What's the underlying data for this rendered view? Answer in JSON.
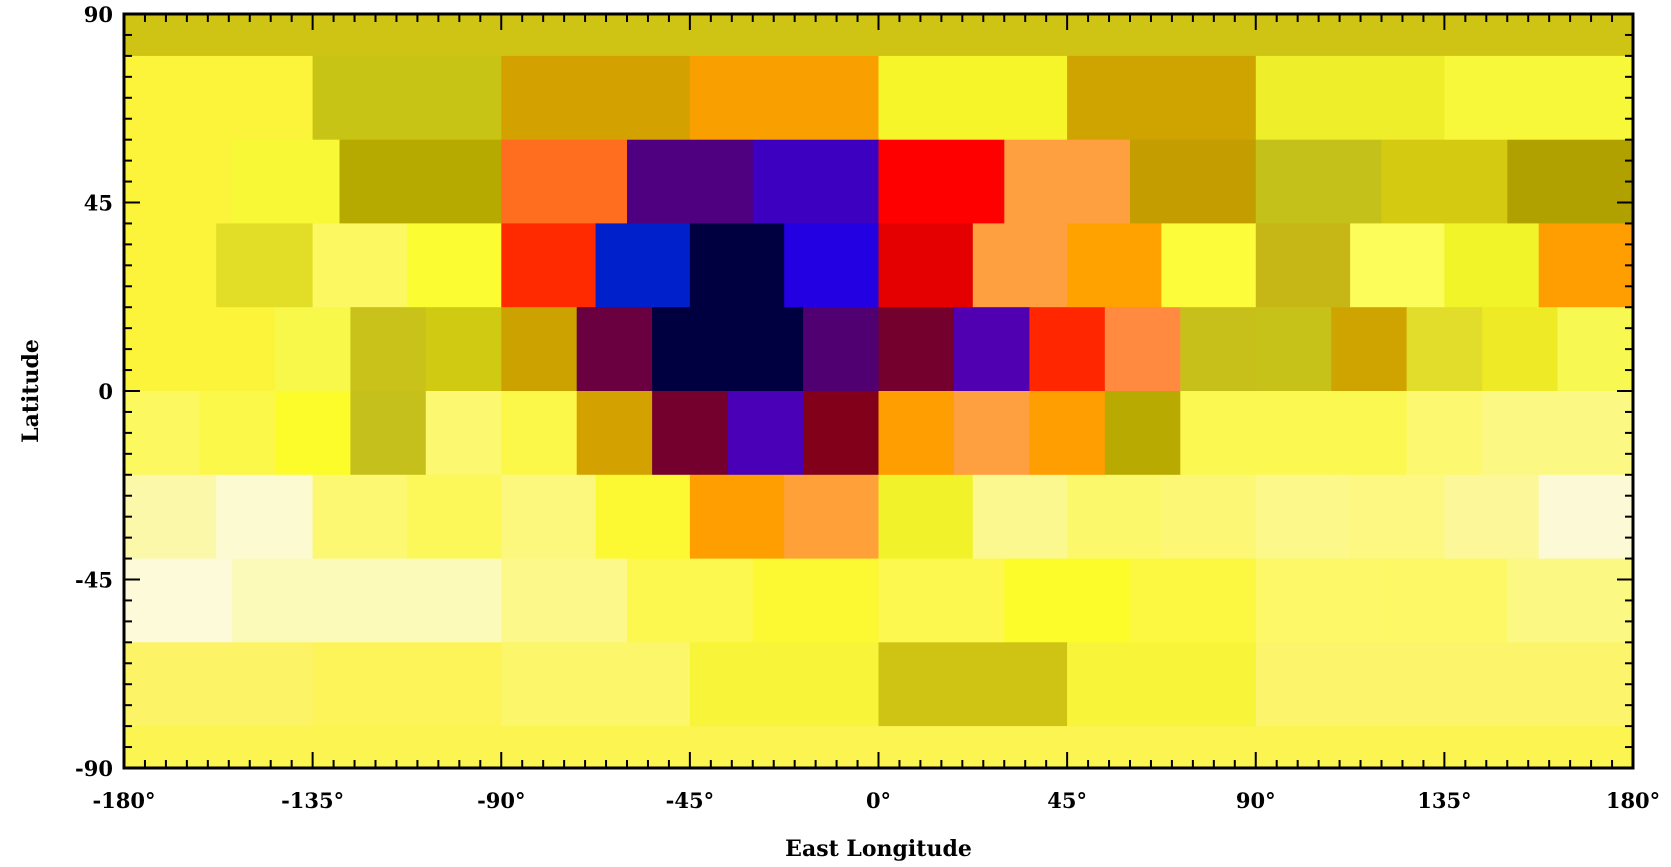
{
  "chart_data": {
    "type": "heatmap",
    "xlabel": "East Longitude",
    "ylabel": "Latitude",
    "xlim": [
      -180,
      180
    ],
    "ylim": [
      -90,
      90
    ],
    "x_ticks": [
      {
        "value": -180,
        "label": "-180°"
      },
      {
        "value": -135,
        "label": "-135°"
      },
      {
        "value": -90,
        "label": "-90°"
      },
      {
        "value": -45,
        "label": "-45°"
      },
      {
        "value": 0,
        "label": "0°"
      },
      {
        "value": 45,
        "label": "45°"
      },
      {
        "value": 90,
        "label": "90°"
      },
      {
        "value": 135,
        "label": "135°"
      },
      {
        "value": 180,
        "label": "180°"
      }
    ],
    "y_ticks": [
      {
        "value": 90,
        "label": "90"
      },
      {
        "value": 45,
        "label": "45"
      },
      {
        "value": 0,
        "label": "0"
      },
      {
        "value": -45,
        "label": "-45"
      },
      {
        "value": -90,
        "label": "-90"
      }
    ],
    "bands": [
      {
        "lat": [
          70,
          90
        ],
        "cells": [
          {
            "lon": [
              -180,
              180
            ],
            "color": "#cfc414"
          }
        ]
      },
      {
        "lat": [
          60,
          80
        ],
        "cells": [
          {
            "lon": [
              -180,
              -135
            ],
            "color": "#fbf43a"
          },
          {
            "lon": [
              -135,
              -90
            ],
            "color": "#c8c416"
          },
          {
            "lon": [
              -90,
              -45
            ],
            "color": "#d4a200"
          },
          {
            "lon": [
              -45,
              0
            ],
            "color": "#f9a000"
          },
          {
            "lon": [
              0,
              45
            ],
            "color": "#f5f52a"
          },
          {
            "lon": [
              45,
              90
            ],
            "color": "#d0a400"
          },
          {
            "lon": [
              90,
              135
            ],
            "color": "#eeee2a"
          },
          {
            "lon": [
              135,
              180
            ],
            "color": "#f8f83a"
          }
        ]
      },
      {
        "lat": [
          40,
          60
        ],
        "cells": [
          {
            "lon": [
              -180,
              -154.3
            ],
            "color": "#fbf43a"
          },
          {
            "lon": [
              -154.3,
              -128.6
            ],
            "color": "#f8f836"
          },
          {
            "lon": [
              -128.6,
              -90
            ],
            "color": "#b6aa00"
          },
          {
            "lon": [
              -90,
              -60
            ],
            "color": "#ff6e1e"
          },
          {
            "lon": [
              -60,
              -30
            ],
            "color": "#4e0080"
          },
          {
            "lon": [
              -30,
              0
            ],
            "color": "#3e00c0"
          },
          {
            "lon": [
              0,
              30
            ],
            "color": "#fe0000"
          },
          {
            "lon": [
              30,
              60
            ],
            "color": "#ffa040"
          },
          {
            "lon": [
              60,
              90
            ],
            "color": "#c49e00"
          },
          {
            "lon": [
              90,
              120
            ],
            "color": "#c4c21a"
          },
          {
            "lon": [
              120,
              150
            ],
            "color": "#d4ca12"
          },
          {
            "lon": [
              150,
              180
            ],
            "color": "#b0a100"
          }
        ]
      },
      {
        "lat": [
          20,
          40
        ],
        "cells": [
          {
            "lon": [
              -180,
              -158
            ],
            "color": "#fbf43a"
          },
          {
            "lon": [
              -158,
              -135
            ],
            "color": "#e2de28"
          },
          {
            "lon": [
              -135,
              -112.5
            ],
            "color": "#fcf862"
          },
          {
            "lon": [
              -112.5,
              -90
            ],
            "color": "#fcfc32"
          },
          {
            "lon": [
              -90,
              -67.5
            ],
            "color": "#ff2a00"
          },
          {
            "lon": [
              -67.5,
              -45
            ],
            "color": "#0020cc"
          },
          {
            "lon": [
              -45,
              -22.5
            ],
            "color": "#000040"
          },
          {
            "lon": [
              -22.5,
              0
            ],
            "color": "#2200e2"
          },
          {
            "lon": [
              0,
              22.5
            ],
            "color": "#e40000"
          },
          {
            "lon": [
              22.5,
              45
            ],
            "color": "#ffa040"
          },
          {
            "lon": [
              45,
              67.5
            ],
            "color": "#ffa200"
          },
          {
            "lon": [
              67.5,
              90
            ],
            "color": "#fcfc3a"
          },
          {
            "lon": [
              90,
              112.5
            ],
            "color": "#c6b616"
          },
          {
            "lon": [
              112.5,
              135
            ],
            "color": "#fcfc5a"
          },
          {
            "lon": [
              135,
              157.5
            ],
            "color": "#f2f42a"
          },
          {
            "lon": [
              157.5,
              180
            ],
            "color": "#ff9e00"
          }
        ]
      },
      {
        "lat": [
          0,
          20
        ],
        "cells": [
          {
            "lon": [
              -180,
              -162
            ],
            "color": "#fbf43a"
          },
          {
            "lon": [
              -162,
              -144
            ],
            "color": "#fbf43a"
          },
          {
            "lon": [
              -144,
              -126
            ],
            "color": "#f8f84a"
          },
          {
            "lon": [
              -126,
              -108
            ],
            "color": "#c8c21a"
          },
          {
            "lon": [
              -108,
              -90
            ],
            "color": "#d0ca12"
          },
          {
            "lon": [
              -90,
              -72
            ],
            "color": "#cca200"
          },
          {
            "lon": [
              -72,
              -54
            ],
            "color": "#6a0040"
          },
          {
            "lon": [
              -54,
              -36
            ],
            "color": "#000040"
          },
          {
            "lon": [
              -36,
              -18
            ],
            "color": "#000040"
          },
          {
            "lon": [
              -18,
              0
            ],
            "color": "#500070"
          },
          {
            "lon": [
              0,
              18
            ],
            "color": "#74002e"
          },
          {
            "lon": [
              18,
              36
            ],
            "color": "#5000b0"
          },
          {
            "lon": [
              36,
              54
            ],
            "color": "#ff2600"
          },
          {
            "lon": [
              54,
              72
            ],
            "color": "#ff8a40"
          },
          {
            "lon": [
              72,
              90
            ],
            "color": "#c8c01a"
          },
          {
            "lon": [
              90,
              108
            ],
            "color": "#c6c21a"
          },
          {
            "lon": [
              108,
              126
            ],
            "color": "#d0a400"
          },
          {
            "lon": [
              126,
              144
            ],
            "color": "#e2dc2a"
          },
          {
            "lon": [
              144,
              162
            ],
            "color": "#eeea26"
          },
          {
            "lon": [
              162,
              180
            ],
            "color": "#f8f852"
          }
        ]
      },
      {
        "lat": [
          -20,
          0
        ],
        "cells": [
          {
            "lon": [
              -180,
              -162
            ],
            "color": "#fcf860"
          },
          {
            "lon": [
              -162,
              -144
            ],
            "color": "#fcf84a"
          },
          {
            "lon": [
              -144,
              -126
            ],
            "color": "#fcfc2a"
          },
          {
            "lon": [
              -126,
              -108
            ],
            "color": "#c6c01c"
          },
          {
            "lon": [
              -108,
              -90
            ],
            "color": "#fcf870"
          },
          {
            "lon": [
              -90,
              -72
            ],
            "color": "#fcf84a"
          },
          {
            "lon": [
              -72,
              -54
            ],
            "color": "#d4a200"
          },
          {
            "lon": [
              -54,
              -36
            ],
            "color": "#74002e"
          },
          {
            "lon": [
              -36,
              -18
            ],
            "color": "#4a00b6"
          },
          {
            "lon": [
              -18,
              0
            ],
            "color": "#82001a"
          },
          {
            "lon": [
              0,
              18
            ],
            "color": "#ff9e00"
          },
          {
            "lon": [
              18,
              36
            ],
            "color": "#ffa040"
          },
          {
            "lon": [
              36,
              54
            ],
            "color": "#ff9e00"
          },
          {
            "lon": [
              54,
              72
            ],
            "color": "#b8aa00"
          },
          {
            "lon": [
              72,
              90
            ],
            "color": "#fcf852"
          },
          {
            "lon": [
              90,
              108
            ],
            "color": "#fcf852"
          },
          {
            "lon": [
              108,
              126
            ],
            "color": "#fcf852"
          },
          {
            "lon": [
              126,
              144
            ],
            "color": "#fcf870"
          },
          {
            "lon": [
              144,
              162
            ],
            "color": "#fcf884"
          },
          {
            "lon": [
              162,
              180
            ],
            "color": "#fcf884"
          }
        ]
      },
      {
        "lat": [
          -40,
          -20
        ],
        "cells": [
          {
            "lon": [
              -180,
              -158
            ],
            "color": "#fcf8aa"
          },
          {
            "lon": [
              -158,
              -135
            ],
            "color": "#fcfad0"
          },
          {
            "lon": [
              -135,
              -112.5
            ],
            "color": "#fcf872"
          },
          {
            "lon": [
              -112.5,
              -90
            ],
            "color": "#fcf85a"
          },
          {
            "lon": [
              -90,
              -67.5
            ],
            "color": "#fcf87e"
          },
          {
            "lon": [
              -67.5,
              -45
            ],
            "color": "#fcf832"
          },
          {
            "lon": [
              -45,
              -22.5
            ],
            "color": "#ff9e00"
          },
          {
            "lon": [
              -22.5,
              0
            ],
            "color": "#ffa038"
          },
          {
            "lon": [
              0,
              22.5
            ],
            "color": "#f2f22a"
          },
          {
            "lon": [
              22.5,
              45
            ],
            "color": "#fcf890"
          },
          {
            "lon": [
              45,
              67.5
            ],
            "color": "#fcf86c"
          },
          {
            "lon": [
              67.5,
              90
            ],
            "color": "#fcf876"
          },
          {
            "lon": [
              90,
              112.5
            ],
            "color": "#fcf88a"
          },
          {
            "lon": [
              112.5,
              135
            ],
            "color": "#fcf882"
          },
          {
            "lon": [
              135,
              157.5
            ],
            "color": "#fcf89a"
          },
          {
            "lon": [
              157.5,
              180
            ],
            "color": "#fcfad6"
          }
        ]
      },
      {
        "lat": [
          -60,
          -40
        ],
        "cells": [
          {
            "lon": [
              -180,
              -154.3
            ],
            "color": "#fcfad8"
          },
          {
            "lon": [
              -154.3,
              -128.6
            ],
            "color": "#fcfab8"
          },
          {
            "lon": [
              -128.6,
              -90
            ],
            "color": "#fcfab8"
          },
          {
            "lon": [
              -90,
              -60
            ],
            "color": "#fcf88a"
          },
          {
            "lon": [
              -60,
              -30
            ],
            "color": "#fcf850"
          },
          {
            "lon": [
              -30,
              0
            ],
            "color": "#fcf832"
          },
          {
            "lon": [
              0,
              30
            ],
            "color": "#fcf850"
          },
          {
            "lon": [
              30,
              60
            ],
            "color": "#fcfc2a"
          },
          {
            "lon": [
              60,
              90
            ],
            "color": "#fcf842"
          },
          {
            "lon": [
              90,
              120
            ],
            "color": "#fcf868"
          },
          {
            "lon": [
              120,
              150
            ],
            "color": "#fcf866"
          },
          {
            "lon": [
              150,
              180
            ],
            "color": "#fcf884"
          }
        ]
      },
      {
        "lat": [
          -80,
          -60
        ],
        "cells": [
          {
            "lon": [
              -180,
              -135
            ],
            "color": "#fcf466"
          },
          {
            "lon": [
              -135,
              -90
            ],
            "color": "#fcf458"
          },
          {
            "lon": [
              -90,
              -45
            ],
            "color": "#fcf66a"
          },
          {
            "lon": [
              -45,
              0
            ],
            "color": "#f8f43a"
          },
          {
            "lon": [
              0,
              45
            ],
            "color": "#cfc414"
          },
          {
            "lon": [
              45,
              90
            ],
            "color": "#f8f43a"
          },
          {
            "lon": [
              90,
              135
            ],
            "color": "#fcf46a"
          },
          {
            "lon": [
              135,
              180
            ],
            "color": "#fcf46a"
          }
        ]
      },
      {
        "lat": [
          -90,
          -80
        ],
        "cells": [
          {
            "lon": [
              -180,
              180
            ],
            "color": "#fcf450"
          }
        ]
      }
    ]
  }
}
